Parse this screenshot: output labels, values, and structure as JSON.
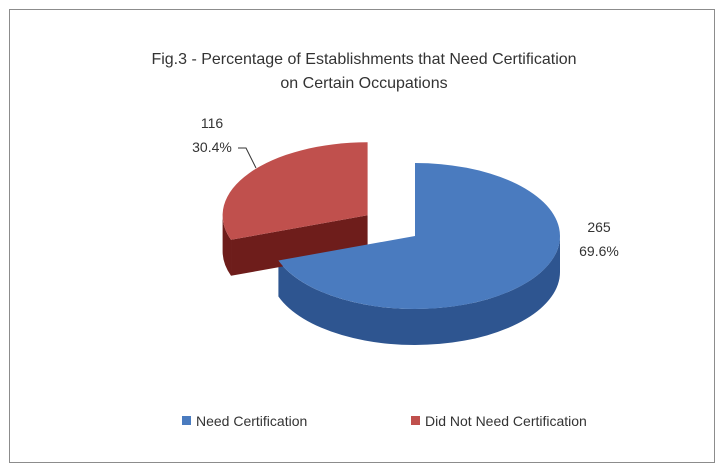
{
  "chart_data": {
    "type": "pie",
    "title_lines": [
      "Fig.3 - Percentage of Establishments that  Need Certification",
      "on   Certain Occupations"
    ],
    "slices": [
      {
        "name": "Need Certification",
        "value": 265,
        "percent_label": "69.6%",
        "color": "#4a7bbf",
        "side_color": "#2e5590"
      },
      {
        "name": "Did Not Need Certification",
        "value": 116,
        "percent_label": "30.4%",
        "color": "#c0504d",
        "side_color": "#6e1d1b"
      }
    ],
    "exploded": "Did Not Need Certification",
    "style": "3d-exploded",
    "legend_position": "bottom"
  }
}
